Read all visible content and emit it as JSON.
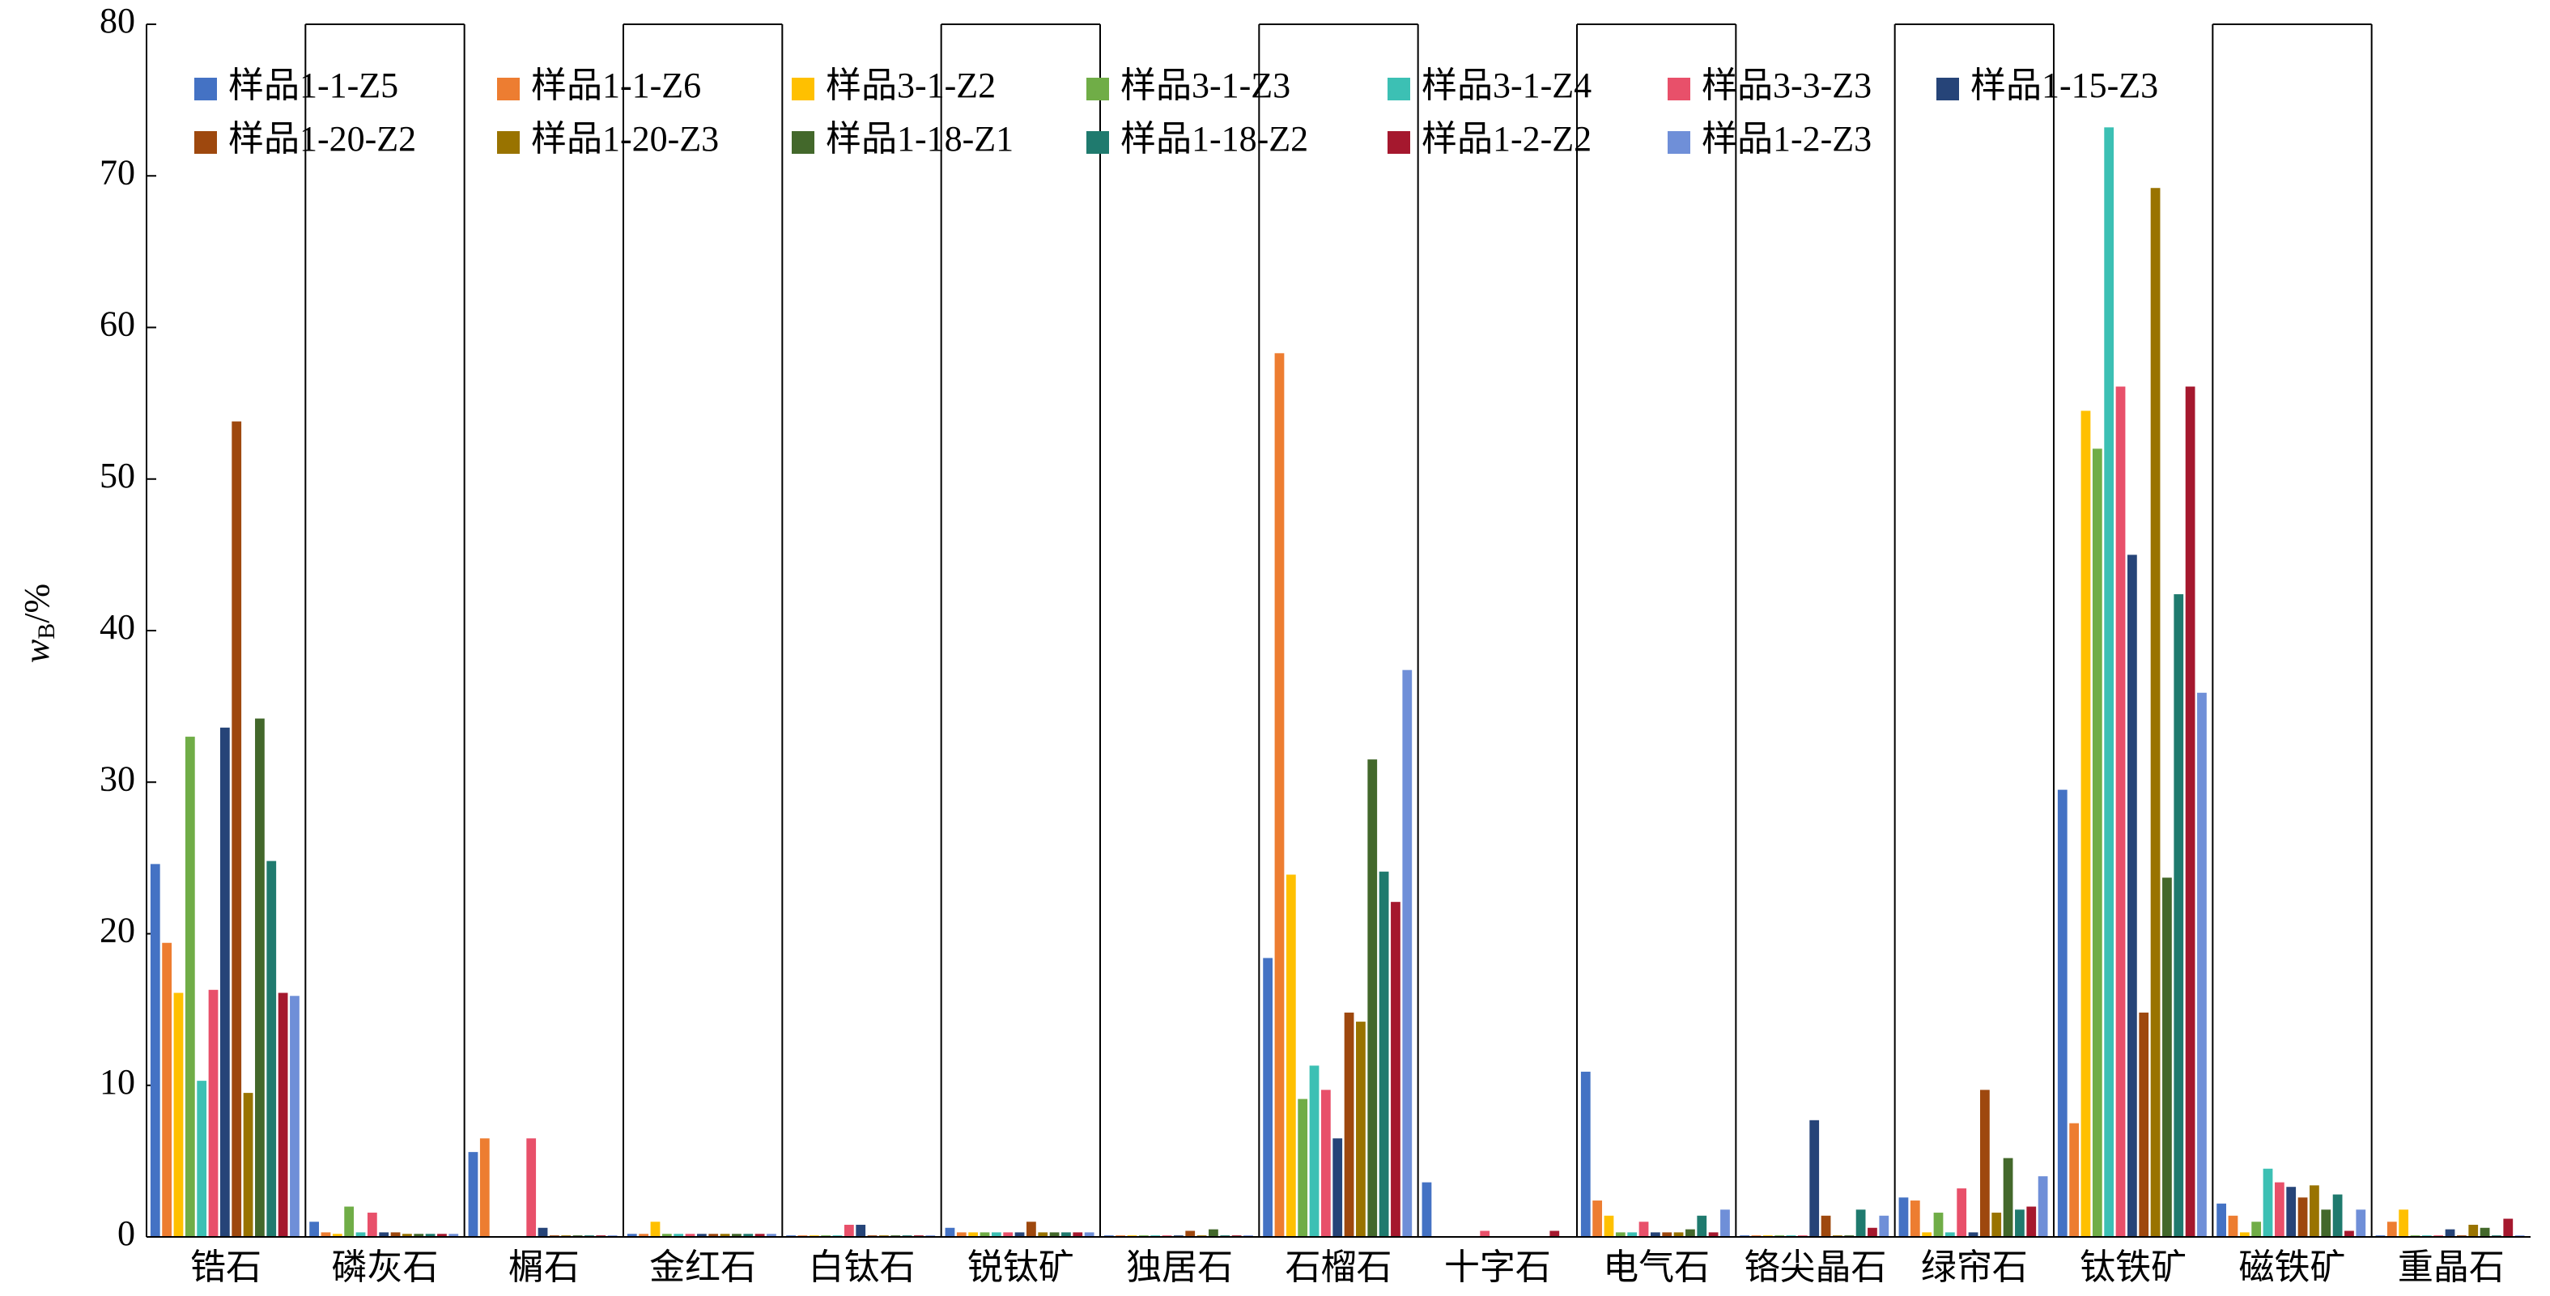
{
  "chart_data": {
    "type": "bar",
    "y_label": {
      "main": "w",
      "sub": "B",
      "unit": "/%"
    },
    "categories": [
      "锆石",
      "磷灰石",
      "榍石",
      "金红石",
      "白钛石",
      "锐钛矿",
      "独居石",
      "石榴石",
      "十字石",
      "电气石",
      "铬尖晶石",
      "绿帘石",
      "钛铁矿",
      "磁铁矿",
      "重晶石"
    ],
    "ylim": [
      0,
      80
    ],
    "yticks": [
      0,
      10,
      20,
      30,
      40,
      50,
      60,
      70,
      80
    ],
    "series": [
      {
        "name": "样品1-1-Z5",
        "color": "#4472c4",
        "values": [
          24.6,
          1.0,
          5.6,
          0.2,
          0.1,
          0.6,
          0.1,
          18.4,
          3.6,
          10.9,
          0.1,
          2.6,
          29.5,
          2.2,
          0.1
        ]
      },
      {
        "name": "样品1-1-Z6",
        "color": "#ed7d31",
        "values": [
          19.4,
          0.3,
          6.5,
          0.2,
          0.1,
          0.3,
          0.1,
          58.3,
          0,
          2.4,
          0.1,
          2.4,
          7.5,
          1.4,
          1.0
        ]
      },
      {
        "name": "样品3-1-Z2",
        "color": "#ffc000",
        "values": [
          16.1,
          0.2,
          0,
          1.0,
          0.1,
          0.3,
          0.1,
          23.9,
          0,
          1.4,
          0.1,
          0.3,
          54.5,
          0.3,
          1.8
        ]
      },
      {
        "name": "样品3-1-Z3",
        "color": "#70ad47",
        "values": [
          33.0,
          2.0,
          0,
          0.2,
          0.1,
          0.3,
          0.1,
          9.1,
          0,
          0.3,
          0.1,
          1.6,
          52.0,
          1.0,
          0.1
        ]
      },
      {
        "name": "样品3-1-Z4",
        "color": "#3cc0b4",
        "values": [
          10.3,
          0.3,
          0,
          0.2,
          0.1,
          0.3,
          0.1,
          11.3,
          0,
          0.3,
          0.1,
          0.3,
          73.2,
          4.5,
          0.1
        ]
      },
      {
        "name": "样品3-3-Z3",
        "color": "#e8506a",
        "values": [
          16.3,
          1.6,
          6.5,
          0.2,
          0.8,
          0.3,
          0.1,
          9.7,
          0.4,
          1.0,
          0.1,
          3.2,
          56.1,
          3.6,
          0.1
        ]
      },
      {
        "name": "样品1-15-Z3",
        "color": "#264478",
        "values": [
          33.6,
          0.3,
          0.6,
          0.2,
          0.8,
          0.3,
          0.1,
          6.5,
          0,
          0.3,
          7.7,
          0.3,
          45.0,
          3.3,
          0.5
        ]
      },
      {
        "name": "样品1-20-Z2",
        "color": "#9e480e",
        "values": [
          53.8,
          0.3,
          0.1,
          0.2,
          0.1,
          1.0,
          0.4,
          14.8,
          0,
          0.3,
          1.4,
          9.7,
          14.8,
          2.6,
          0.1
        ]
      },
      {
        "name": "样品1-20-Z3",
        "color": "#997300",
        "values": [
          9.5,
          0.2,
          0.1,
          0.2,
          0.1,
          0.3,
          0.1,
          14.2,
          0,
          0.3,
          0.1,
          1.6,
          69.2,
          3.4,
          0.8
        ]
      },
      {
        "name": "样品1-18-Z1",
        "color": "#43682b",
        "values": [
          34.2,
          0.2,
          0.1,
          0.2,
          0.1,
          0.3,
          0.5,
          31.5,
          0,
          0.5,
          0.1,
          5.2,
          23.7,
          1.8,
          0.6
        ]
      },
      {
        "name": "样品1-18-Z2",
        "color": "#1f7a6e",
        "values": [
          24.8,
          0.2,
          0.1,
          0.2,
          0.1,
          0.3,
          0.1,
          24.1,
          0,
          1.4,
          1.8,
          1.8,
          42.4,
          2.8,
          0.1
        ]
      },
      {
        "name": "样品1-2-Z2",
        "color": "#a5182e",
        "values": [
          16.1,
          0.2,
          0.1,
          0.2,
          0.1,
          0.3,
          0.1,
          22.1,
          0.4,
          0.3,
          0.6,
          2.0,
          56.1,
          0.4,
          1.2
        ]
      },
      {
        "name": "样品1-2-Z3",
        "color": "#6f8fd8",
        "values": [
          15.9,
          0.2,
          0.1,
          0.2,
          0.1,
          0.3,
          0.1,
          37.4,
          0,
          1.8,
          1.4,
          4.0,
          35.9,
          1.8,
          0.1
        ]
      }
    ]
  }
}
